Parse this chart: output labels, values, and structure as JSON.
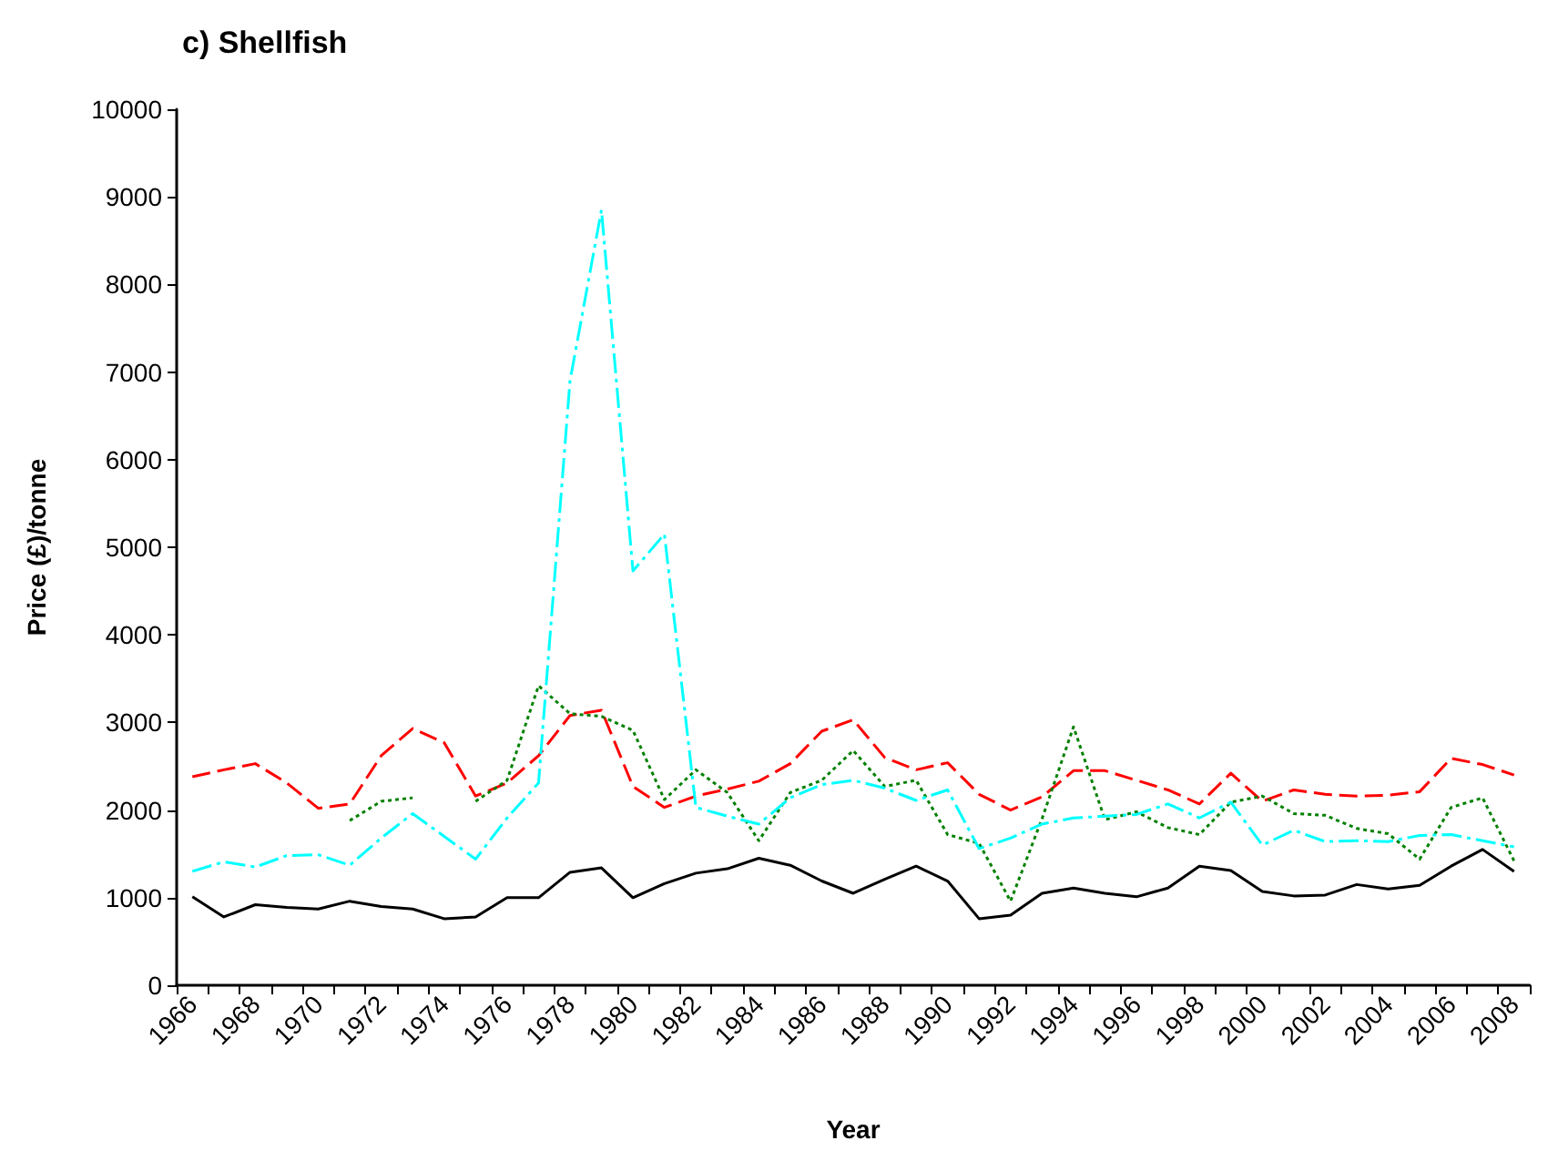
{
  "chart_data": {
    "type": "line",
    "title": "c) Shellfish",
    "xlabel": "Year",
    "ylabel": "Price (£)/tonne",
    "categories": [
      "1966",
      null,
      "1968",
      null,
      "1970",
      null,
      "1972",
      null,
      "1974",
      null,
      "1976",
      null,
      "1978",
      null,
      "1980",
      null,
      "1982",
      null,
      "1984",
      null,
      "1986",
      null,
      "1988",
      null,
      "1990",
      null,
      "1992",
      null,
      "1994",
      null,
      "1996",
      null,
      "1998",
      null,
      "2000",
      null,
      "2002",
      null,
      "2004",
      null,
      "2006",
      null,
      "2008"
    ],
    "series": [
      {
        "color": "#000000",
        "line_style": "solid",
        "values": [
          1010,
          780,
          920,
          890,
          870,
          960,
          900,
          870,
          760,
          780,
          1000,
          1000,
          1290,
          1340,
          1000,
          1160,
          1280,
          1330,
          1450,
          1370,
          1190,
          1050,
          1210,
          1360,
          1190,
          760,
          800,
          1050,
          1110,
          1050,
          1010,
          1110,
          1360,
          1310,
          1070,
          1020,
          1030,
          1150,
          1100,
          1140,
          1360,
          1550,
          1300
        ]
      },
      {
        "color": "#ff0000",
        "line_style": "dashed",
        "values": [
          2380,
          2460,
          2530,
          2310,
          2020,
          2070,
          2620,
          2930,
          2770,
          2160,
          2310,
          2620,
          3080,
          3140,
          2270,
          2030,
          2160,
          2240,
          2330,
          2530,
          2900,
          3030,
          2600,
          2460,
          2540,
          2180,
          2000,
          2150,
          2450,
          2450,
          2340,
          2230,
          2070,
          2420,
          2100,
          2230,
          2180,
          2160,
          2170,
          2210,
          2590,
          2520,
          2400
        ]
      },
      {
        "color": "#008000",
        "line_style": "dotted",
        "values": [
          null,
          null,
          null,
          null,
          null,
          1880,
          2100,
          2140,
          null,
          2100,
          2340,
          3420,
          3100,
          3070,
          2910,
          2120,
          2460,
          2200,
          1650,
          2200,
          2340,
          2680,
          2270,
          2340,
          1720,
          1620,
          960,
          1900,
          2950,
          1890,
          1980,
          1800,
          1720,
          2090,
          2160,
          1960,
          1940,
          1790,
          1730,
          1440,
          2030,
          2140,
          1420
        ]
      },
      {
        "color": "#00ffff",
        "line_style": "dashdot",
        "values": [
          1300,
          1410,
          1350,
          1480,
          1490,
          1370,
          1680,
          1960,
          1700,
          1440,
          1910,
          2310,
          6900,
          8850,
          4730,
          5150,
          2030,
          1930,
          1840,
          2140,
          2290,
          2340,
          2250,
          2110,
          2230,
          1560,
          1680,
          1840,
          1910,
          1930,
          1950,
          2070,
          1910,
          2090,
          1600,
          1770,
          1640,
          1650,
          1640,
          1710,
          1720,
          1650,
          1580
        ]
      }
    ],
    "ylim": [
      0,
      10000
    ],
    "yticks": [
      0,
      1000,
      2000,
      3000,
      4000,
      5000,
      6000,
      7000,
      8000,
      9000,
      10000
    ],
    "grid": false,
    "marker": "none"
  }
}
